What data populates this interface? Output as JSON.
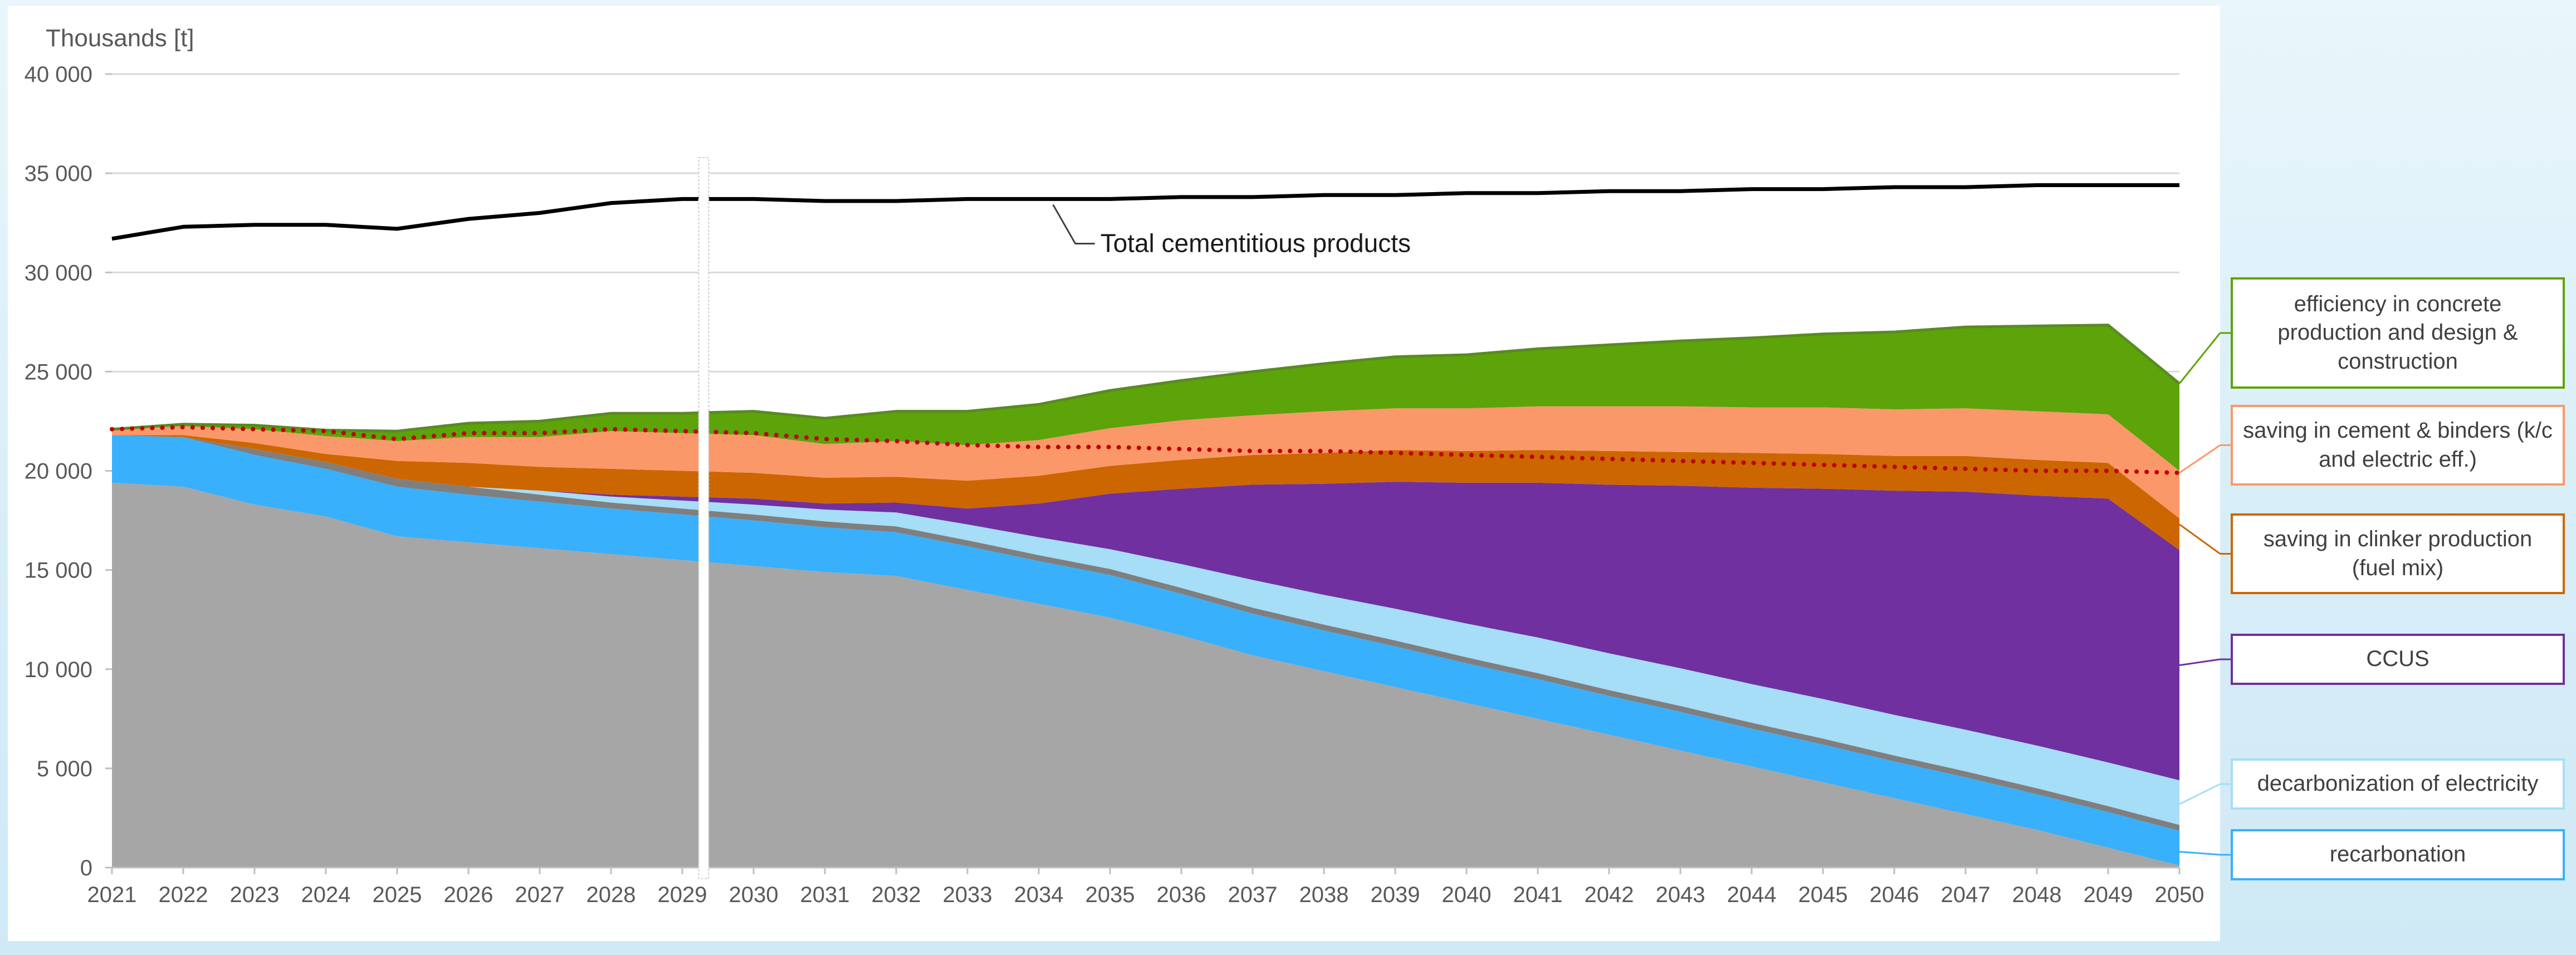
{
  "chart_data": {
    "type": "area",
    "unit_label": "Thousands [t]",
    "x": [
      2021,
      2022,
      2023,
      2024,
      2025,
      2026,
      2027,
      2028,
      2029,
      2030,
      2031,
      2032,
      2033,
      2034,
      2035,
      2036,
      2037,
      2038,
      2039,
      2040,
      2041,
      2042,
      2043,
      2044,
      2045,
      2046,
      2047,
      2048,
      2049,
      2050
    ],
    "x_tick_labels": [
      "2021",
      "2022",
      "2023",
      "2024",
      "2025",
      "2026",
      "2027",
      "2028",
      "2029",
      "2030",
      "2031",
      "2032",
      "2033",
      "2034",
      "2035",
      "2036",
      "2037",
      "2038",
      "2039",
      "2040",
      "2041",
      "2042",
      "2043",
      "2044",
      "2045",
      "2046",
      "2047",
      "2048",
      "2049",
      "2050"
    ],
    "ylim": [
      0,
      40000
    ],
    "y_ticks": [
      0,
      5000,
      10000,
      15000,
      20000,
      25000,
      30000,
      35000,
      40000
    ],
    "y_tick_labels": [
      "0",
      "5 000",
      "10 000",
      "15 000",
      "20 000",
      "25 000",
      "30 000",
      "35 000",
      "40 000"
    ],
    "grid": true,
    "stack_base": {
      "name": "",
      "color": "#a6a6a6",
      "values": [
        19400,
        19200,
        18300,
        17700,
        16700,
        16400,
        16100,
        15800,
        15500,
        15200,
        14900,
        14700,
        14000,
        13300,
        12600,
        11700,
        10700,
        9900,
        9100,
        8300,
        7500,
        6700,
        5900,
        5100,
        4300,
        3500,
        2700,
        1900,
        1000,
        100
      ]
    },
    "series": [
      {
        "name": "recarbonation",
        "color": "#39b0fb",
        "values": [
          2400,
          2500,
          2500,
          2400,
          2500,
          2400,
          2350,
          2300,
          2300,
          2300,
          2250,
          2200,
          2200,
          2150,
          2150,
          2100,
          2100,
          2050,
          2050,
          2000,
          2000,
          1950,
          1950,
          1900,
          1900,
          1850,
          1850,
          1800,
          1800,
          1750
        ]
      },
      {
        "name": "",
        "color": "#7f7f7f",
        "values": [
          0,
          0,
          300,
          350,
          400,
          400,
          350,
          300,
          300,
          300,
          300,
          300,
          300,
          300,
          300,
          300,
          300,
          300,
          300,
          300,
          300,
          300,
          300,
          300,
          300,
          300,
          300,
          300,
          300,
          300
        ]
      },
      {
        "name": "decarbonization of electricity",
        "color": "#a6ddf7",
        "values": [
          0,
          0,
          0,
          0,
          0,
          0,
          200,
          300,
          400,
          500,
          600,
          700,
          800,
          900,
          1000,
          1200,
          1400,
          1500,
          1600,
          1700,
          1800,
          1850,
          1900,
          1950,
          2000,
          2050,
          2100,
          2150,
          2200,
          2250
        ]
      },
      {
        "name": "CCUS",
        "color": "#7030a0",
        "values": [
          0,
          0,
          0,
          0,
          0,
          0,
          0,
          100,
          200,
          300,
          300,
          500,
          800,
          1700,
          2800,
          3800,
          4800,
          5600,
          6400,
          7100,
          7800,
          8500,
          9200,
          9900,
          10600,
          11300,
          12000,
          12600,
          13300,
          11600
        ]
      },
      {
        "name": "saving in clinker production (fuel mix)",
        "color": "#cc6600",
        "values": [
          0,
          100,
          300,
          400,
          900,
          1200,
          1200,
          1300,
          1300,
          1300,
          1300,
          1300,
          1400,
          1400,
          1400,
          1450,
          1500,
          1550,
          1600,
          1600,
          1650,
          1700,
          1700,
          1750,
          1750,
          1750,
          1800,
          1800,
          1800,
          1600
        ]
      },
      {
        "name": "saving in cement & binders (k/c and electric eff.)",
        "color": "#fb9869",
        "values": [
          300,
          450,
          700,
          900,
          1000,
          1300,
          1500,
          1900,
          1900,
          1900,
          1700,
          1800,
          1800,
          1800,
          1900,
          2000,
          2000,
          2100,
          2100,
          2150,
          2200,
          2250,
          2300,
          2300,
          2350,
          2350,
          2400,
          2450,
          2450,
          2400
        ]
      },
      {
        "name": "efficiency in concrete production and design & construction",
        "color": "#5da30a",
        "values": [
          0,
          100,
          200,
          300,
          500,
          700,
          800,
          900,
          1000,
          1200,
          1300,
          1500,
          1700,
          1800,
          1900,
          2000,
          2200,
          2400,
          2600,
          2700,
          2900,
          3100,
          3300,
          3500,
          3700,
          3900,
          4100,
          4300,
          4500,
          4400
        ]
      }
    ],
    "dotted_line": {
      "name": "",
      "color": "#c00000",
      "values": [
        22100,
        22200,
        22100,
        22000,
        21600,
        21900,
        21900,
        22100,
        22000,
        21900,
        21600,
        21500,
        21300,
        21200,
        21200,
        21100,
        21000,
        21000,
        20900,
        20800,
        20700,
        20600,
        20500,
        20400,
        20300,
        20200,
        20100,
        20000,
        20000,
        19900
      ]
    },
    "total_line": {
      "name": "Total cementitious products",
      "color": "#000000",
      "values": [
        31700,
        32300,
        32400,
        32400,
        32200,
        32700,
        33000,
        33500,
        33700,
        33700,
        33600,
        33600,
        33700,
        33700,
        33700,
        33800,
        33800,
        33900,
        33900,
        34000,
        34000,
        34100,
        34100,
        34200,
        34200,
        34300,
        34300,
        34400,
        34400,
        34400
      ]
    },
    "legend": [
      {
        "label": "efficiency in concrete production and design & construction",
        "border": "#5da30a",
        "target_year": 2050,
        "target_value": 24400
      },
      {
        "label": "saving in cement & binders (k/c and electric eff.)",
        "border": "#fb9869",
        "target_year": 2050,
        "target_value": 19900
      },
      {
        "label": "saving in clinker production (fuel mix)",
        "border": "#cc6600",
        "target_year": 2050,
        "target_value": 17300
      },
      {
        "label": "CCUS",
        "border": "#7030a0",
        "target_year": 2050,
        "target_value": 10200
      },
      {
        "label": "decarbonization of electricity",
        "border": "#a6ddf7",
        "target_year": 2050,
        "target_value": 3200
      },
      {
        "label": "recarbonation",
        "border": "#39b0fb",
        "target_year": 2050,
        "target_value": 800
      }
    ]
  }
}
